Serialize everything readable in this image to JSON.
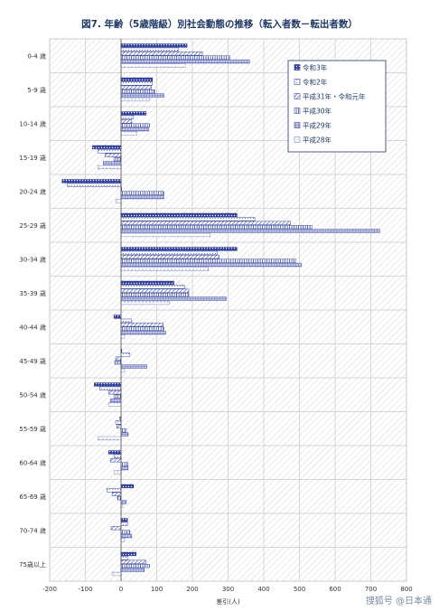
{
  "chart_data": {
    "type": "bar",
    "orientation": "horizontal",
    "title": "図7. 年齢（5歳階級）別社会動態の推移（転入者数－転出者数）",
    "xlabel": "差引(人)",
    "ylabel": "",
    "xlim": [
      -200,
      800
    ],
    "xticks": [
      -200,
      -100,
      0,
      100,
      200,
      300,
      400,
      500,
      600,
      700,
      800
    ],
    "grid": true,
    "legend_position": "top-right",
    "categories": [
      "0-4 歳",
      "5-9 歳",
      "10-14 歳",
      "15-19 歳",
      "20-24 歳",
      "25-29 歳",
      "30-34 歳",
      "35-39 歳",
      "40-44 歳",
      "45-49 歳",
      "50-54 歳",
      "55-59 歳",
      "60-64 歳",
      "65-69 歳",
      "70-74 歳",
      "75歳以上"
    ],
    "series": [
      {
        "name": "令和3年",
        "values": [
          185,
          88,
          70,
          -80,
          -165,
          325,
          325,
          148,
          -20,
          2,
          -75,
          -3,
          -35,
          35,
          18,
          42
        ]
      },
      {
        "name": "令和2年",
        "values": [
          160,
          88,
          35,
          -65,
          -150,
          375,
          270,
          178,
          30,
          25,
          -60,
          -15,
          -20,
          -40,
          18,
          20
        ]
      },
      {
        "name": "平成31年・令和元年",
        "values": [
          228,
          85,
          30,
          -45,
          2,
          475,
          275,
          190,
          118,
          -15,
          -35,
          -12,
          -30,
          -25,
          -28,
          70
        ]
      },
      {
        "name": "平成30年",
        "values": [
          305,
          95,
          80,
          -20,
          120,
          535,
          490,
          190,
          120,
          -18,
          -20,
          15,
          20,
          -10,
          25,
          80
        ]
      },
      {
        "name": "平成29年",
        "values": [
          360,
          120,
          78,
          -50,
          120,
          725,
          505,
          295,
          125,
          72,
          -30,
          20,
          20,
          15,
          30,
          65
        ]
      },
      {
        "name": "平成28年",
        "values": [
          180,
          80,
          45,
          -65,
          -15,
          250,
          245,
          135,
          10,
          10,
          -35,
          -65,
          -20,
          5,
          10,
          -25
        ]
      }
    ],
    "colors": {
      "series_fills": [
        "#2f3f9e",
        "#ffffff",
        "#c7cbe6",
        "#ffffff",
        "#aab2da",
        "#ffffff"
      ],
      "series_strokes": [
        "#1f2a80",
        "#3a4a9e",
        "#3a4a9e",
        "#3a4a9e",
        "#3a4a9e",
        "#7a86c0"
      ],
      "legend_border": "#1f3864",
      "title": "#1f3864"
    }
  },
  "watermark": "搜狐号 @日本通"
}
